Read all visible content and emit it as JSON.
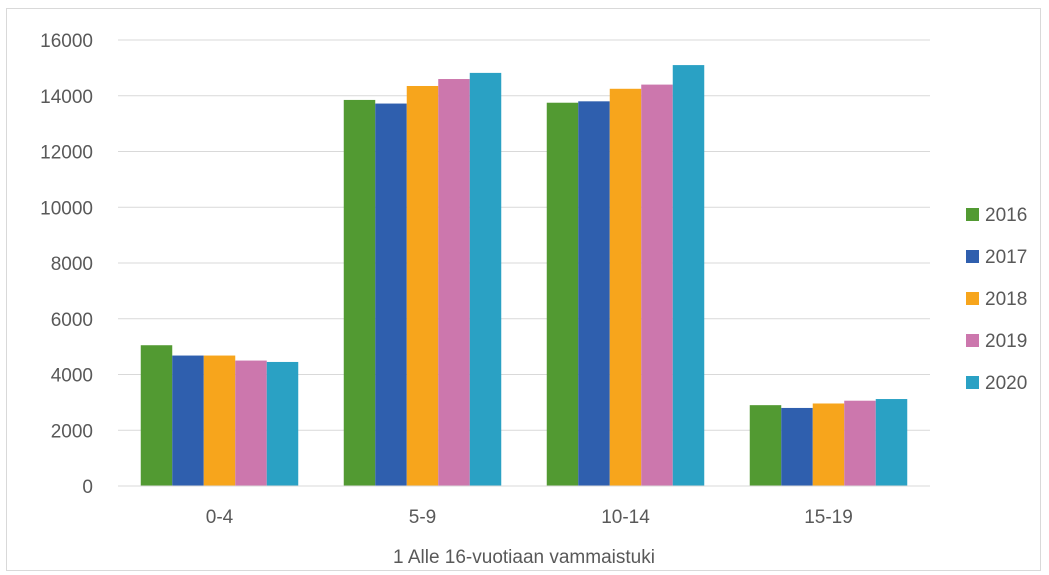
{
  "chart_data": {
    "type": "bar",
    "title": "",
    "xlabel": "1 Alle 16-vuotiaan vammaistuki",
    "ylabel": "",
    "categories": [
      "0-4",
      "5-9",
      "10-14",
      "15-19"
    ],
    "series": [
      {
        "name": "2016",
        "color": "#529a32",
        "values": [
          5050,
          13850,
          13750,
          2900
        ]
      },
      {
        "name": "2017",
        "color": "#2f5fae",
        "values": [
          4680,
          13720,
          13800,
          2800
        ]
      },
      {
        "name": "2018",
        "color": "#f7a51c",
        "values": [
          4680,
          14350,
          14250,
          2960
        ]
      },
      {
        "name": "2019",
        "color": "#cc77ad",
        "values": [
          4500,
          14600,
          14400,
          3060
        ]
      },
      {
        "name": "2020",
        "color": "#2aa1c4",
        "values": [
          4450,
          14820,
          15100,
          3120
        ]
      }
    ],
    "ylim": [
      0,
      16000
    ],
    "yticks": [
      "0",
      "2000",
      "4000",
      "6000",
      "8000",
      "10000",
      "12000",
      "14000",
      "16000"
    ],
    "grid": true,
    "legend_position": "right"
  }
}
